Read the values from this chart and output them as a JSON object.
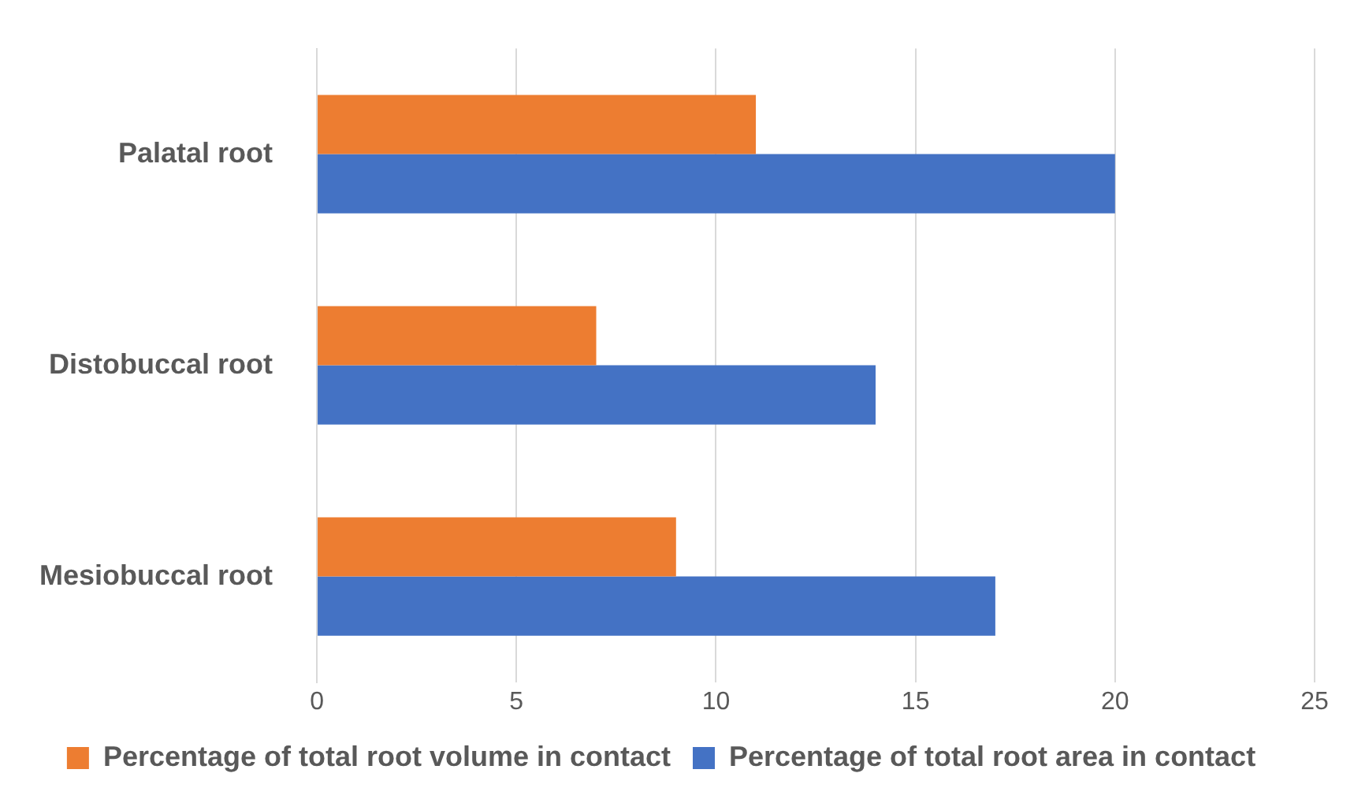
{
  "chart_data": {
    "type": "bar",
    "orientation": "horizontal",
    "categories": [
      "Palatal root",
      "Distobuccal root",
      "Mesiobuccal root"
    ],
    "series": [
      {
        "name": "Percentage of total root volume in contact",
        "color": "#ed7d31",
        "values": [
          11,
          7,
          9
        ]
      },
      {
        "name": "Percentage of total root area in contact",
        "color": "#4472c4",
        "values": [
          20,
          14,
          17
        ]
      }
    ],
    "xlim": [
      0,
      25
    ],
    "xticks": [
      0,
      5,
      10,
      15,
      20,
      25
    ],
    "grid": "x",
    "legend": "bottom"
  }
}
